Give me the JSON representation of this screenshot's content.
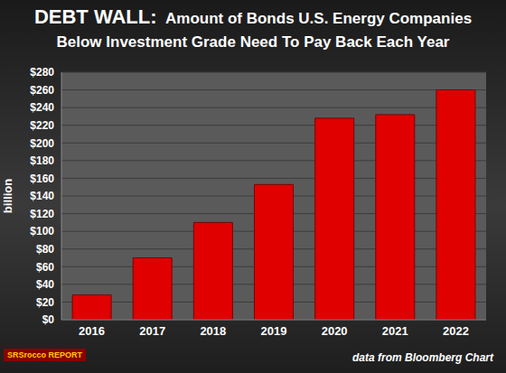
{
  "chart_data": {
    "type": "bar",
    "title": "DEBT WALL:",
    "subtitle": [
      "Amount of Bonds U.S. Energy Companies",
      "Below Investment Grade Need To Pay Back Each Year"
    ],
    "y_label": "billion",
    "categories": [
      "2016",
      "2017",
      "2018",
      "2019",
      "2020",
      "2021",
      "2022"
    ],
    "values": [
      28,
      70,
      110,
      153,
      228,
      232,
      260
    ],
    "color": "#e00000",
    "ylim": [
      0,
      280
    ],
    "yticks": [
      {
        "value": 0,
        "label": "$0"
      },
      {
        "value": 20,
        "label": "$20"
      },
      {
        "value": 40,
        "label": "$40"
      },
      {
        "value": 60,
        "label": "$60"
      },
      {
        "value": 80,
        "label": "$80"
      },
      {
        "value": 100,
        "label": "$100"
      },
      {
        "value": 120,
        "label": "$120"
      },
      {
        "value": 140,
        "label": "$140"
      },
      {
        "value": 160,
        "label": "$160"
      },
      {
        "value": 180,
        "label": "$180"
      },
      {
        "value": 200,
        "label": "$200"
      },
      {
        "value": 220,
        "label": "$220"
      },
      {
        "value": 240,
        "label": "$240"
      },
      {
        "value": 260,
        "label": "$260"
      },
      {
        "value": 280,
        "label": "$280"
      }
    ],
    "grid": true,
    "annotations": [
      "data from Bloomberg Chart",
      "SRSrocco REPORT"
    ]
  }
}
